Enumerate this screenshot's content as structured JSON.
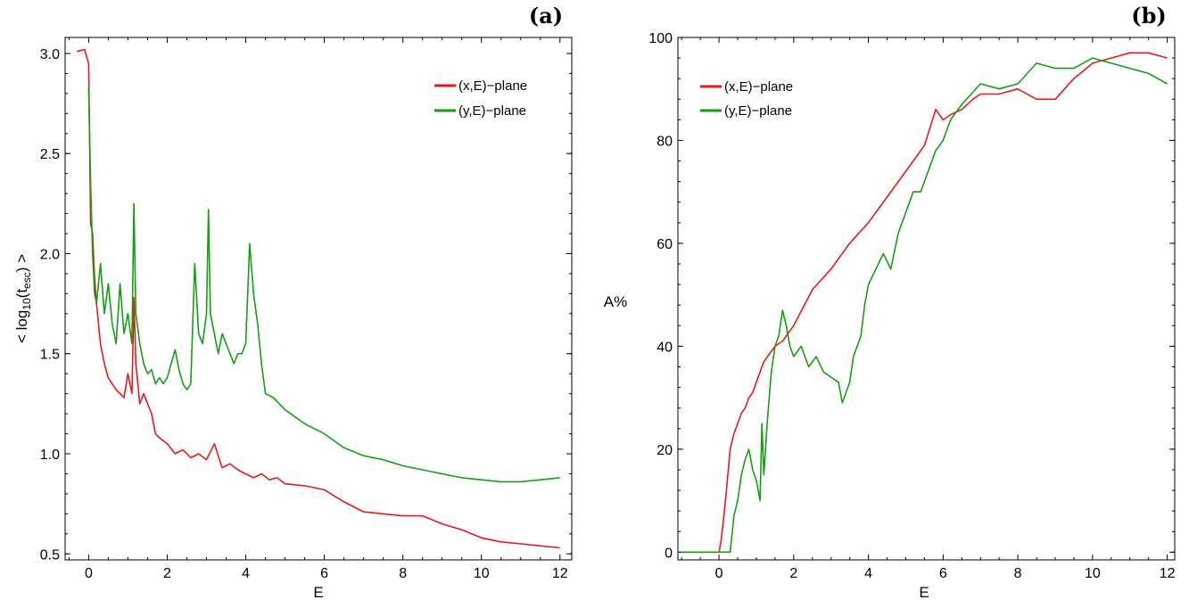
{
  "chart_data": [
    {
      "type": "line",
      "panel_label": "(a)",
      "title": "",
      "xlabel": "E",
      "ylabel_prefix": "< log",
      "ylabel_sub1": "10",
      "ylabel_mid": "(t",
      "ylabel_sub2": "esc",
      "ylabel_suffix": ") >",
      "xlim": [
        -0.6,
        12.3
      ],
      "ylim": [
        0.47,
        3.08
      ],
      "x_ticks": [
        0,
        2,
        4,
        6,
        8,
        10,
        12
      ],
      "x_tick_labels": [
        "0",
        "2",
        "4",
        "6",
        "8",
        "10",
        "12"
      ],
      "y_ticks": [
        0.5,
        1.0,
        1.5,
        2.0,
        2.5,
        3.0
      ],
      "y_tick_labels": [
        "0.5",
        "1.0",
        "1.5",
        "2.0",
        "2.5",
        "3.0"
      ],
      "legend_position": "top-right",
      "grid": false,
      "series": [
        {
          "name": "(x,E)−plane",
          "color": "#e8191e",
          "x": [
            -0.3,
            -0.1,
            -0.05,
            0.0,
            0.05,
            0.1,
            0.15,
            0.2,
            0.3,
            0.4,
            0.5,
            0.6,
            0.7,
            0.8,
            0.9,
            1.0,
            1.1,
            1.15,
            1.2,
            1.3,
            1.4,
            1.5,
            1.6,
            1.7,
            1.8,
            2.0,
            2.2,
            2.4,
            2.6,
            2.8,
            3.0,
            3.2,
            3.4,
            3.6,
            3.8,
            4.0,
            4.2,
            4.4,
            4.6,
            4.8,
            5.0,
            5.5,
            6.0,
            6.5,
            7.0,
            7.5,
            8.0,
            8.5,
            9.0,
            9.5,
            10.0,
            10.5,
            11.0,
            11.5,
            12.0
          ],
          "y": [
            3.01,
            3.02,
            2.98,
            2.95,
            2.15,
            2.1,
            1.88,
            1.75,
            1.55,
            1.45,
            1.38,
            1.35,
            1.32,
            1.3,
            1.28,
            1.4,
            1.3,
            1.78,
            1.45,
            1.25,
            1.3,
            1.25,
            1.2,
            1.1,
            1.08,
            1.05,
            1.0,
            1.02,
            0.98,
            1.0,
            0.97,
            1.05,
            0.93,
            0.95,
            0.92,
            0.9,
            0.88,
            0.9,
            0.87,
            0.88,
            0.85,
            0.84,
            0.82,
            0.76,
            0.71,
            0.7,
            0.69,
            0.69,
            0.65,
            0.62,
            0.58,
            0.56,
            0.55,
            0.54,
            0.53
          ]
        },
        {
          "name": "(y,E)−plane",
          "color": "#139e13",
          "x": [
            0.0,
            0.05,
            0.1,
            0.15,
            0.2,
            0.3,
            0.4,
            0.5,
            0.6,
            0.7,
            0.8,
            0.9,
            1.0,
            1.1,
            1.15,
            1.2,
            1.3,
            1.4,
            1.5,
            1.6,
            1.7,
            1.8,
            1.9,
            2.0,
            2.1,
            2.2,
            2.3,
            2.4,
            2.5,
            2.6,
            2.7,
            2.8,
            2.9,
            3.0,
            3.05,
            3.1,
            3.2,
            3.3,
            3.4,
            3.5,
            3.6,
            3.7,
            3.8,
            3.9,
            4.0,
            4.1,
            4.2,
            4.3,
            4.4,
            4.5,
            4.7,
            5.0,
            5.5,
            6.0,
            6.5,
            7.0,
            7.5,
            8.0,
            8.5,
            9.0,
            9.5,
            10.0,
            10.5,
            11.0,
            11.5,
            12.0
          ],
          "y": [
            2.83,
            2.35,
            2.0,
            1.8,
            1.75,
            1.95,
            1.7,
            1.85,
            1.65,
            1.55,
            1.85,
            1.6,
            1.7,
            1.55,
            2.25,
            1.7,
            1.55,
            1.45,
            1.4,
            1.42,
            1.35,
            1.38,
            1.35,
            1.38,
            1.45,
            1.52,
            1.42,
            1.35,
            1.32,
            1.35,
            1.95,
            1.6,
            1.55,
            1.7,
            2.22,
            1.7,
            1.6,
            1.5,
            1.6,
            1.55,
            1.5,
            1.45,
            1.5,
            1.5,
            1.55,
            2.05,
            1.8,
            1.65,
            1.45,
            1.3,
            1.28,
            1.22,
            1.15,
            1.1,
            1.03,
            0.99,
            0.97,
            0.94,
            0.92,
            0.9,
            0.88,
            0.87,
            0.86,
            0.86,
            0.87,
            0.88
          ]
        }
      ]
    },
    {
      "type": "line",
      "panel_label": "(b)",
      "title": "",
      "xlabel": "E",
      "ylabel": "A%",
      "xlim": [
        -1.1,
        12.2
      ],
      "ylim": [
        -1.5,
        100
      ],
      "x_ticks": [
        0,
        2,
        4,
        6,
        8,
        10,
        12
      ],
      "x_tick_labels": [
        "0",
        "2",
        "4",
        "6",
        "8",
        "10",
        "12"
      ],
      "y_ticks": [
        0,
        20,
        40,
        60,
        80,
        100
      ],
      "y_tick_labels": [
        "0",
        "20",
        "40",
        "60",
        "80",
        "100"
      ],
      "legend_position": "top-left",
      "grid": false,
      "series": [
        {
          "name": "(x,E)−plane",
          "color": "#e8191e",
          "x": [
            -1.0,
            -0.5,
            0.0,
            0.05,
            0.1,
            0.2,
            0.3,
            0.4,
            0.5,
            0.6,
            0.7,
            0.8,
            0.9,
            1.0,
            1.1,
            1.2,
            1.3,
            1.5,
            1.7,
            2.0,
            2.5,
            3.0,
            3.5,
            4.0,
            4.5,
            5.0,
            5.5,
            5.8,
            6.0,
            6.2,
            6.5,
            6.8,
            7.0,
            7.5,
            8.0,
            8.5,
            9.0,
            9.5,
            10.0,
            10.5,
            11.0,
            11.5,
            12.0
          ],
          "y": [
            0,
            0,
            0,
            2,
            5,
            12,
            20,
            23,
            25,
            27,
            28,
            30,
            31,
            33,
            35,
            37,
            38,
            40,
            41,
            44,
            51,
            55,
            60,
            64,
            69,
            74,
            79,
            86,
            84,
            85,
            86,
            88,
            89,
            89,
            90,
            88,
            88,
            92,
            95,
            96,
            97,
            97,
            96
          ]
        },
        {
          "name": "(y,E)−plane",
          "color": "#139e13",
          "x": [
            -1.0,
            0.0,
            0.3,
            0.4,
            0.5,
            0.6,
            0.7,
            0.8,
            0.9,
            1.0,
            1.1,
            1.15,
            1.2,
            1.3,
            1.4,
            1.5,
            1.6,
            1.7,
            1.8,
            1.9,
            2.0,
            2.2,
            2.4,
            2.6,
            2.8,
            3.0,
            3.2,
            3.3,
            3.4,
            3.5,
            3.6,
            3.7,
            3.8,
            3.9,
            4.0,
            4.2,
            4.4,
            4.6,
            4.8,
            5.0,
            5.2,
            5.4,
            5.6,
            5.8,
            6.0,
            6.2,
            6.5,
            7.0,
            7.5,
            8.0,
            8.5,
            9.0,
            9.5,
            10.0,
            10.5,
            11.0,
            11.5,
            12.0
          ],
          "y": [
            0,
            0,
            0,
            7,
            10,
            15,
            18,
            20,
            16,
            14,
            10,
            25,
            15,
            26,
            35,
            40,
            42,
            47,
            44,
            40,
            38,
            40,
            36,
            38,
            35,
            34,
            33,
            29,
            31,
            33,
            38,
            40,
            42,
            48,
            52,
            55,
            58,
            55,
            62,
            66,
            70,
            70,
            74,
            78,
            80,
            84,
            87,
            91,
            90,
            91,
            95,
            94,
            94,
            96,
            95,
            94,
            93,
            91
          ]
        }
      ]
    }
  ]
}
